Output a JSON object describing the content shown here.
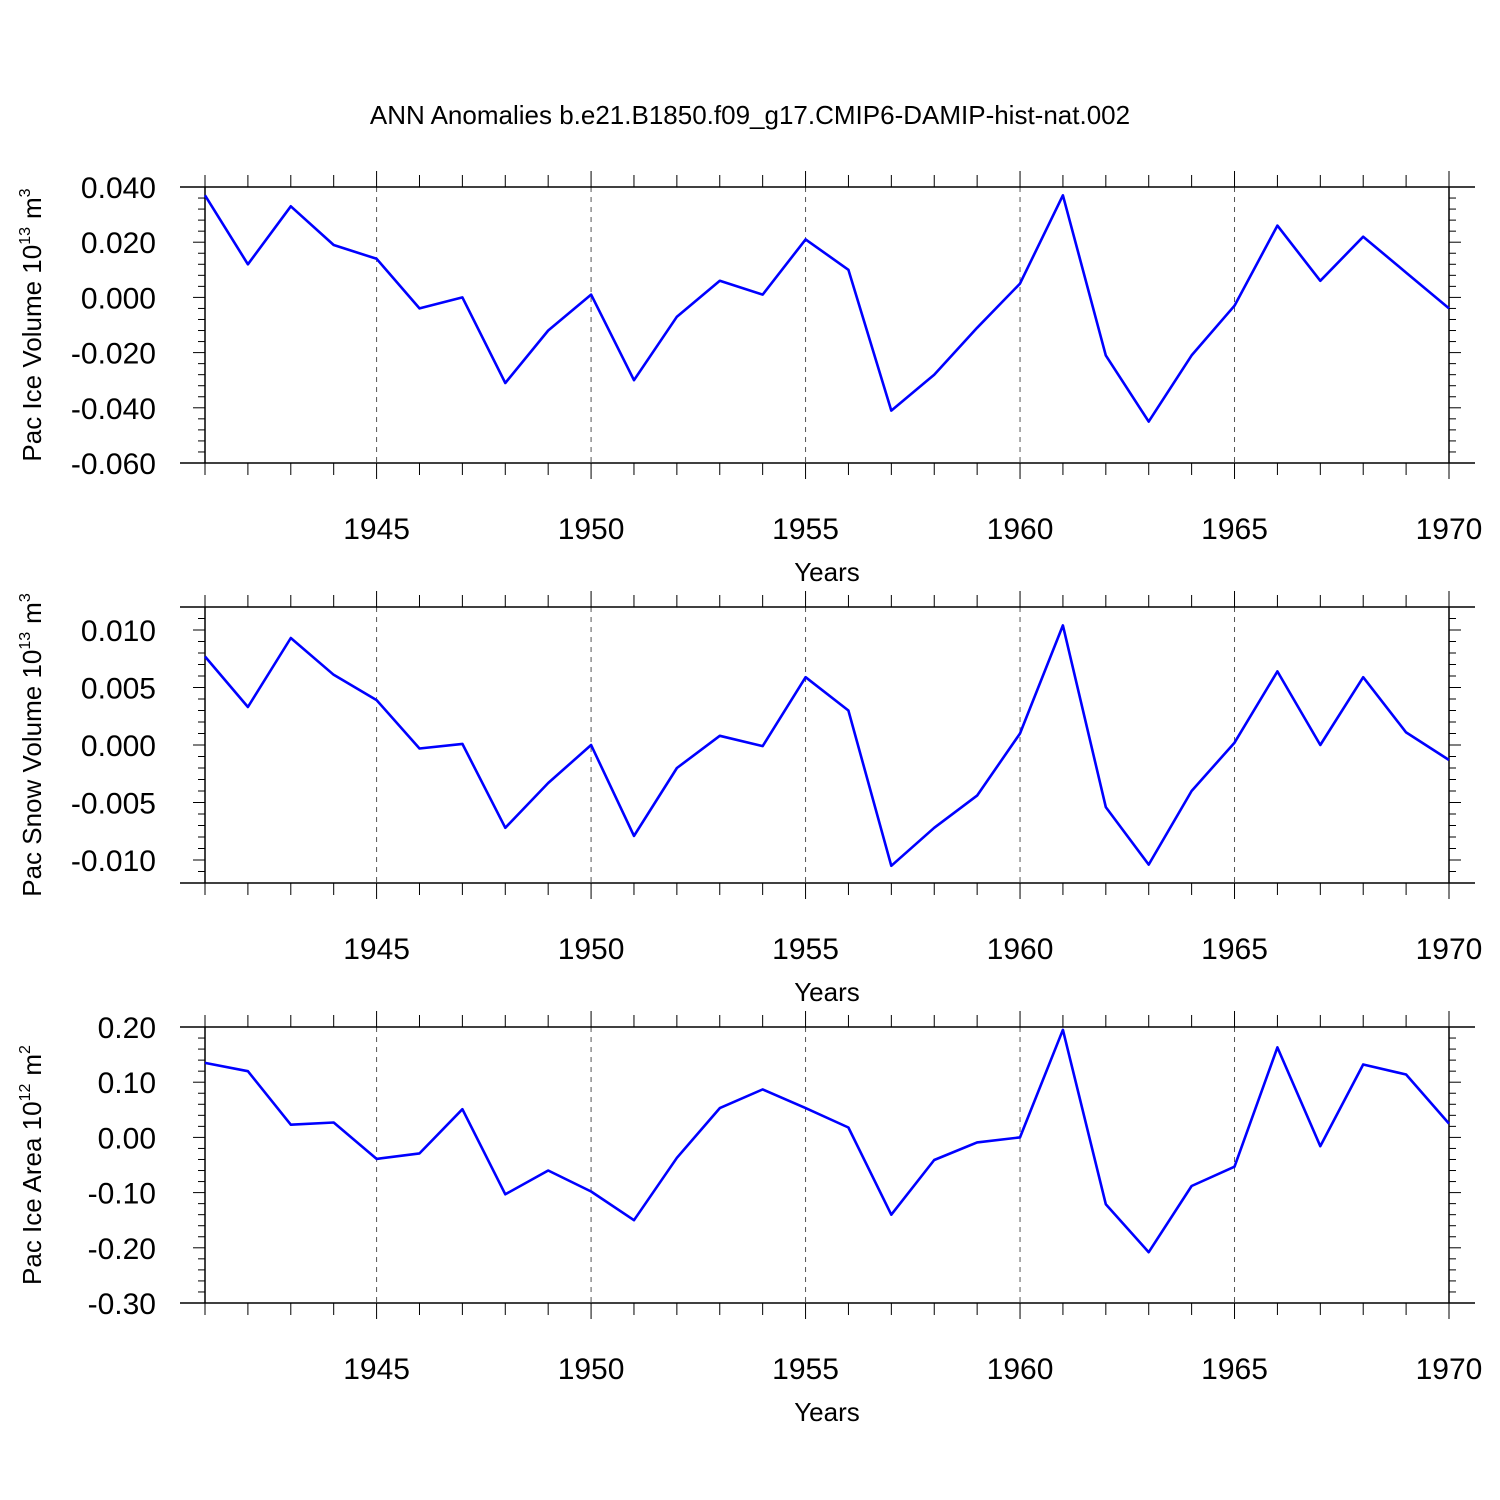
{
  "chart_data": {
    "title": "ANN Anomalies b.e21.B1850.f09_g17.CMIP6-DAMIP-hist-nat.002",
    "panels": [
      {
        "type": "line",
        "ylabel_main": "Pac Ice Volume 10",
        "ylabel_exp": "13",
        "ylabel_unit": "m",
        "ylabel_unit_exp": "3",
        "xlabel": "Years",
        "x": [
          1941,
          1942,
          1943,
          1944,
          1945,
          1946,
          1947,
          1948,
          1949,
          1950,
          1951,
          1952,
          1953,
          1954,
          1955,
          1956,
          1957,
          1958,
          1959,
          1960,
          1961,
          1962,
          1963,
          1964,
          1965,
          1966,
          1967,
          1968,
          1969,
          1970
        ],
        "values": [
          0.037,
          0.012,
          0.033,
          0.019,
          0.014,
          -0.004,
          0.0,
          -0.031,
          -0.012,
          0.001,
          -0.03,
          -0.007,
          0.006,
          0.001,
          0.021,
          0.01,
          -0.041,
          -0.028,
          -0.011,
          0.005,
          0.037,
          -0.021,
          -0.045,
          -0.021,
          -0.003,
          0.026,
          0.006,
          0.022,
          0.009,
          -0.004
        ],
        "xlim": [
          1941,
          1970
        ],
        "ylim": [
          -0.06,
          0.04
        ],
        "yticks": [
          0.04,
          0.02,
          0.0,
          -0.02,
          -0.04,
          -0.06
        ],
        "ytick_labels": [
          "0.040",
          "0.020",
          "0.000",
          "-0.020",
          "-0.040",
          "-0.060"
        ],
        "xticks": [
          1945,
          1950,
          1955,
          1960,
          1965,
          1970
        ],
        "xtick_labels": [
          "1945",
          "1950",
          "1955",
          "1960",
          "1965",
          "1970"
        ],
        "color": "#0000ff"
      },
      {
        "type": "line",
        "ylabel_main": "Pac Snow Volume 10",
        "ylabel_exp": "13",
        "ylabel_unit": "m",
        "ylabel_unit_exp": "3",
        "xlabel": "Years",
        "x": [
          1941,
          1942,
          1943,
          1944,
          1945,
          1946,
          1947,
          1948,
          1949,
          1950,
          1951,
          1952,
          1953,
          1954,
          1955,
          1956,
          1957,
          1958,
          1959,
          1960,
          1961,
          1962,
          1963,
          1964,
          1965,
          1966,
          1967,
          1968,
          1969,
          1970
        ],
        "values": [
          0.0077,
          0.0033,
          0.0093,
          0.0061,
          0.0039,
          -0.0003,
          0.0001,
          -0.0072,
          -0.0033,
          0.0,
          -0.0079,
          -0.002,
          0.0008,
          -0.0001,
          0.0059,
          0.003,
          -0.0105,
          -0.0072,
          -0.0044,
          0.001,
          0.0104,
          -0.0054,
          -0.0104,
          -0.004,
          0.0002,
          0.0064,
          0.0,
          0.0059,
          0.0011,
          -0.0013
        ],
        "xlim": [
          1941,
          1970
        ],
        "ylim": [
          -0.012,
          0.012
        ],
        "yticks": [
          0.01,
          0.005,
          0.0,
          -0.005,
          -0.01
        ],
        "ytick_labels": [
          "0.010",
          "0.005",
          "0.000",
          "-0.005",
          "-0.010"
        ],
        "xticks": [
          1945,
          1950,
          1955,
          1960,
          1965,
          1970
        ],
        "xtick_labels": [
          "1945",
          "1950",
          "1955",
          "1960",
          "1965",
          "1970"
        ],
        "color": "#0000ff"
      },
      {
        "type": "line",
        "ylabel_main": "Pac Ice Area 10",
        "ylabel_exp": "12",
        "ylabel_unit": "m",
        "ylabel_unit_exp": "2",
        "xlabel": "Years",
        "x": [
          1941,
          1942,
          1943,
          1944,
          1945,
          1946,
          1947,
          1948,
          1949,
          1950,
          1951,
          1952,
          1953,
          1954,
          1955,
          1956,
          1957,
          1958,
          1959,
          1960,
          1961,
          1962,
          1963,
          1964,
          1965,
          1966,
          1967,
          1968,
          1969,
          1970
        ],
        "values": [
          0.135,
          0.12,
          0.023,
          0.027,
          -0.039,
          -0.029,
          0.051,
          -0.103,
          -0.06,
          -0.098,
          -0.15,
          -0.037,
          0.053,
          0.087,
          0.053,
          0.018,
          -0.14,
          -0.041,
          -0.009,
          0.0,
          0.195,
          -0.121,
          -0.208,
          -0.088,
          -0.053,
          0.163,
          -0.016,
          0.132,
          0.114,
          0.025
        ],
        "xlim": [
          1941,
          1970
        ],
        "ylim": [
          -0.3,
          0.2
        ],
        "yticks": [
          0.2,
          0.1,
          0.0,
          -0.1,
          -0.2,
          -0.3
        ],
        "ytick_labels": [
          "0.20",
          "0.10",
          "0.00",
          "-0.10",
          "-0.20",
          "-0.30"
        ],
        "xticks": [
          1945,
          1950,
          1955,
          1960,
          1965,
          1970
        ],
        "xtick_labels": [
          "1945",
          "1950",
          "1955",
          "1960",
          "1965",
          "1970"
        ],
        "color": "#0000ff"
      }
    ]
  }
}
